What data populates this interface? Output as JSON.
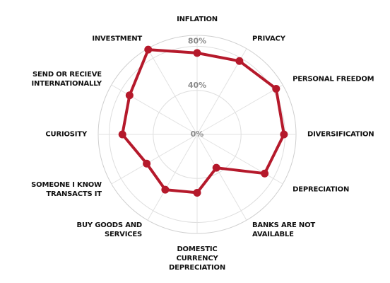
{
  "chart_data": {
    "type": "radar",
    "categories": [
      "INFLATION",
      "PRIVACY",
      "PERSONAL FREEDOM",
      "DIVERSIFICATION",
      "DEPRECIATION",
      "BANKS ARE NOT AVAILABLE",
      "DOMESTIC CURRENCY DEPRECIATION",
      "BUY GOODS AND SERVICES",
      "SOMEONE I KNOW TRANSACTS IT",
      "CURIOSITY",
      "SEND OR RECIEVE INTERNATIONALLY",
      "INVESTMENT"
    ],
    "values": [
      74,
      77,
      83,
      79,
      71,
      35,
      53,
      58,
      53,
      68,
      71,
      89
    ],
    "color": "#b5192b",
    "ylim": [
      0,
      90
    ],
    "yticks": [
      {
        "value": 0,
        "label": "0%"
      },
      {
        "value": 40,
        "label": "40%"
      },
      {
        "value": 80,
        "label": "80%"
      }
    ],
    "grid": true
  }
}
